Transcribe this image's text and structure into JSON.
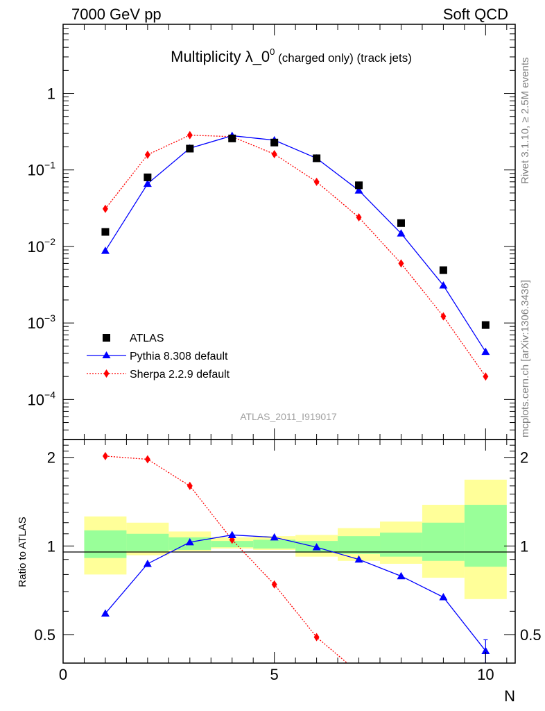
{
  "header": {
    "left": "7000 GeV pp",
    "right": "Soft QCD"
  },
  "title": {
    "main": "Multiplicity λ_0",
    "sup": "0",
    "sub": " (charged only) (track jets)"
  },
  "side_labels": {
    "rivet": "Rivet 3.1.10, ≥ 2.5M events",
    "mcplots": "mcplots.cern.ch [arXiv:1306.3436]"
  },
  "watermark": "ATLAS_2011_I919017",
  "legend": [
    {
      "label": "ATLAS",
      "color": "#000000",
      "marker": "square",
      "line": "none"
    },
    {
      "label": "Pythia 8.308 default",
      "color": "#0000ff",
      "marker": "triangle",
      "line": "solid"
    },
    {
      "label": "Sherpa 2.2.9 default",
      "color": "#ff0000",
      "marker": "diamond",
      "line": "dotted"
    }
  ],
  "chart_data": [
    {
      "type": "scatter",
      "panel": "main",
      "title": "Multiplicity λ_0^0 (charged only) (track jets)",
      "xlabel": "N",
      "ylabel": "",
      "yscale": "log",
      "xlim": [
        0,
        10.7
      ],
      "ylim": [
        3e-05,
        8
      ],
      "y_tick_labels": [
        {
          "value": 1,
          "base": "1",
          "exp": ""
        },
        {
          "value": 0.1,
          "base": "10",
          "exp": "−1"
        },
        {
          "value": 0.01,
          "base": "10",
          "exp": "−2"
        },
        {
          "value": 0.001,
          "base": "10",
          "exp": "−3"
        },
        {
          "value": 0.0001,
          "base": "10",
          "exp": "−4"
        }
      ],
      "x": [
        1,
        2,
        3,
        4,
        5,
        6,
        7,
        8,
        9,
        10
      ],
      "series": [
        {
          "name": "ATLAS",
          "color": "#000000",
          "marker": "square",
          "line": "none",
          "values": [
            0.0155,
            0.08,
            0.19,
            0.258,
            0.228,
            0.142,
            0.063,
            0.0202,
            0.0049,
            0.00094
          ]
        },
        {
          "name": "Pythia 8.308 default",
          "color": "#0000ff",
          "marker": "triangle",
          "line": "solid",
          "values": [
            0.0088,
            0.066,
            0.192,
            0.28,
            0.245,
            0.142,
            0.054,
            0.0148,
            0.0031,
            0.00042
          ]
        },
        {
          "name": "Sherpa 2.2.9 default",
          "color": "#ff0000",
          "marker": "diamond",
          "line": "dotted",
          "values": [
            0.031,
            0.158,
            0.285,
            0.272,
            0.161,
            0.07,
            0.024,
            0.006,
            0.00122,
            0.0002
          ]
        }
      ]
    },
    {
      "type": "line",
      "panel": "ratio",
      "xlabel": "N",
      "ylabel": "Ratio to ATLAS",
      "xlim": [
        0,
        10.7
      ],
      "ylim": [
        0.4,
        2.3
      ],
      "x_ticks": [
        0,
        5,
        10
      ],
      "y_ticks": [
        0.5,
        1,
        2
      ],
      "reference_line": 1,
      "bands": {
        "edges": [
          0.5,
          1.5,
          2.5,
          3.5,
          4.5,
          5.5,
          6.5,
          7.5,
          8.5,
          9.5,
          10.5
        ],
        "yellow_lo": [
          0.8,
          0.93,
          0.96,
          0.98,
          0.97,
          0.92,
          0.89,
          0.87,
          0.78,
          0.66
        ],
        "yellow_hi": [
          1.26,
          1.2,
          1.12,
          1.07,
          1.08,
          1.09,
          1.15,
          1.21,
          1.38,
          1.68
        ],
        "green_lo": [
          0.91,
          0.96,
          0.97,
          0.99,
          0.98,
          0.95,
          0.94,
          0.92,
          0.89,
          0.85
        ],
        "green_hi": [
          1.13,
          1.1,
          1.07,
          1.04,
          1.05,
          1.04,
          1.08,
          1.11,
          1.2,
          1.38
        ],
        "yellow_color": "#ffff99",
        "green_color": "#99ff99"
      },
      "x": [
        1,
        2,
        3,
        4,
        5,
        6,
        7,
        8,
        9,
        10
      ],
      "series": [
        {
          "name": "Pythia 8.308 default",
          "color": "#0000ff",
          "marker": "triangle",
          "line": "solid",
          "values": [
            0.59,
            0.87,
            1.03,
            1.09,
            1.07,
            0.99,
            0.9,
            0.79,
            0.67,
            0.44
          ],
          "error_last": 0.04
        },
        {
          "name": "Sherpa 2.2.9 default",
          "color": "#ff0000",
          "marker": "diamond",
          "line": "dotted",
          "values": [
            2.02,
            1.97,
            1.6,
            1.05,
            0.74,
            0.49,
            0.37,
            null,
            null,
            null
          ]
        }
      ]
    }
  ]
}
